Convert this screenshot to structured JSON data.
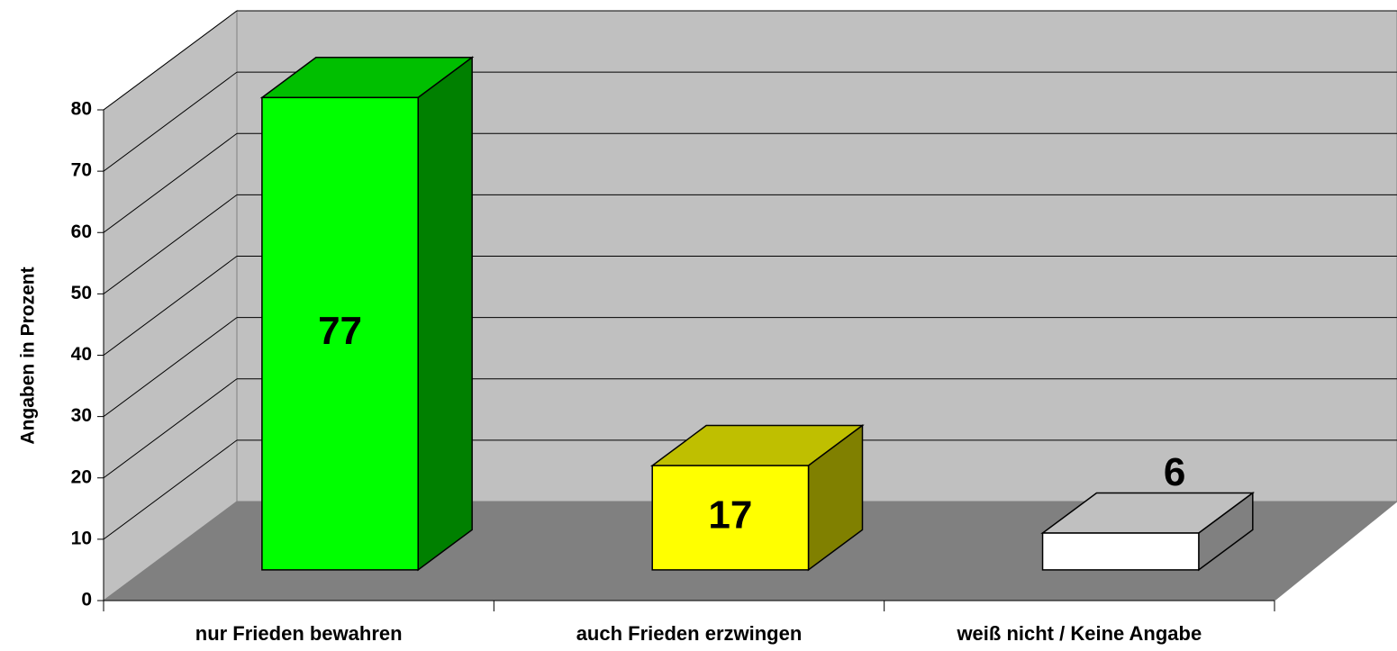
{
  "chart_data": {
    "type": "bar3d",
    "y_label": "Angaben in Prozent",
    "categories": [
      "nur Frieden bewahren",
      "auch Frieden erzwingen",
      "weiß nicht / Keine Angabe"
    ],
    "values": [
      77,
      17,
      6
    ],
    "colors": [
      "#00ff00",
      "#ffff00",
      "#ffffff"
    ],
    "ylim": [
      0,
      80
    ],
    "yticks": [
      0,
      10,
      20,
      30,
      40,
      50,
      60,
      70,
      80
    ],
    "grid": true
  }
}
